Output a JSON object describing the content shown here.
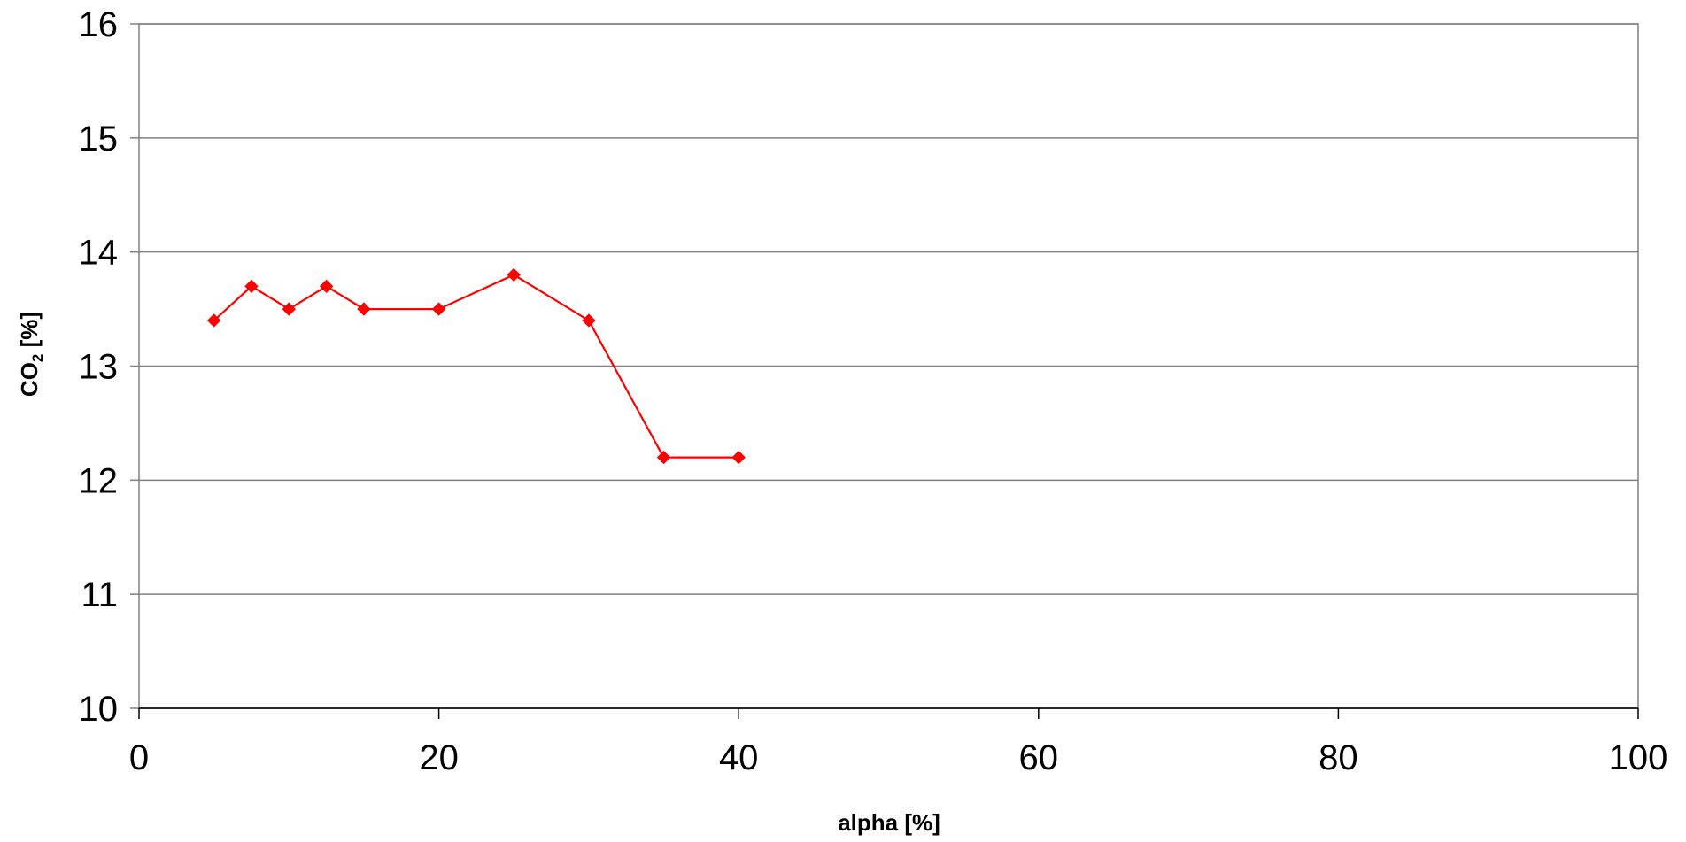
{
  "chart_data": {
    "type": "line",
    "title": "",
    "xlabel": "alpha [%]",
    "ylabel_main": "CO",
    "ylabel_sub": "2",
    "ylabel_suffix": " [%]",
    "xlim": [
      0,
      100
    ],
    "ylim": [
      10,
      16
    ],
    "x_ticks": [
      0,
      20,
      40,
      60,
      80,
      100
    ],
    "y_ticks": [
      10,
      11,
      12,
      13,
      14,
      15,
      16
    ],
    "grid": "horizontal",
    "legend": "none",
    "series": [
      {
        "color": "#ff0000",
        "marker": "diamond",
        "x": [
          5,
          7.5,
          10,
          12.5,
          15,
          20,
          25,
          30,
          35,
          40
        ],
        "y": [
          13.4,
          13.7,
          13.5,
          13.7,
          13.5,
          13.5,
          13.8,
          13.4,
          12.2,
          12.2
        ]
      }
    ]
  }
}
